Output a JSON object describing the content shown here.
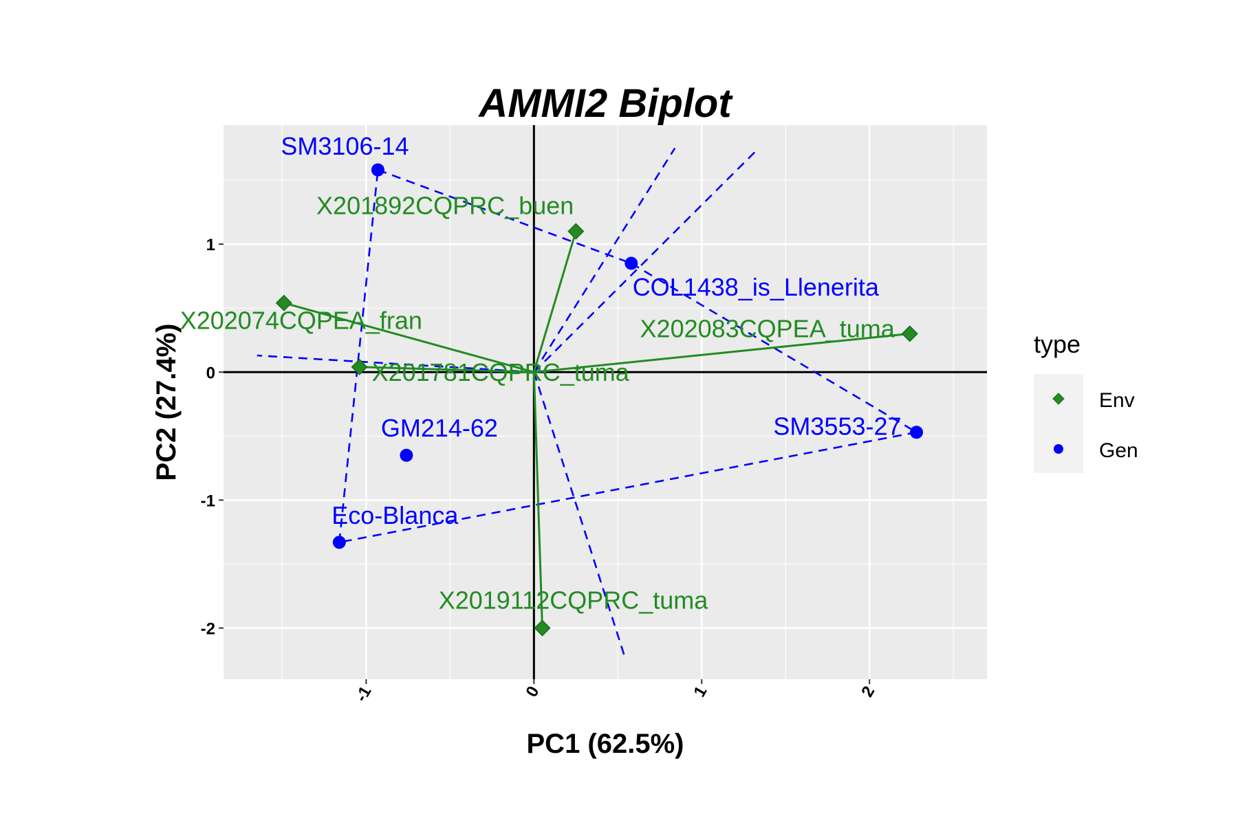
{
  "chart_data": {
    "type": "scatter",
    "title": "AMMI2 Biplot",
    "xlabel": "PC1 (62.5%)",
    "ylabel": "PC2 (27.4%)",
    "xlim": [
      -1.85,
      2.7
    ],
    "ylim": [
      -2.4,
      1.93
    ],
    "x_ticks": [
      -1,
      0,
      1,
      2
    ],
    "x_tick_labels": [
      "-1",
      "0",
      "1",
      "2"
    ],
    "y_ticks": [
      -2,
      -1,
      0,
      1
    ],
    "y_tick_labels": [
      "-2",
      "-1",
      "0",
      "1"
    ],
    "grid": true,
    "legend": {
      "title": "type",
      "position": "right",
      "entries": [
        {
          "label": "Env",
          "shape": "diamond",
          "color": "#228B22"
        },
        {
          "label": "Gen",
          "shape": "circle",
          "color": "#0000FF"
        }
      ]
    },
    "env_color": "#228B22",
    "gen_color": "#0000FF",
    "environments": [
      {
        "name": "X201892CQPRC_buen",
        "x": 0.25,
        "y": 1.1
      },
      {
        "name": "X202074CQPEA_fran",
        "x": -1.49,
        "y": 0.54
      },
      {
        "name": "X202083CQPEA_tuma",
        "x": 2.24,
        "y": 0.3
      },
      {
        "name": "X201781CQPRC_tuma",
        "x": -1.04,
        "y": 0.04
      },
      {
        "name": "X2019112CQPRC_tuma",
        "x": 0.05,
        "y": -2.0
      }
    ],
    "genotypes": [
      {
        "name": "SM3106-14",
        "x": -0.93,
        "y": 1.58
      },
      {
        "name": "COL1438_is_Llenerita",
        "x": 0.58,
        "y": 0.85
      },
      {
        "name": "SM3553-27",
        "x": 2.28,
        "y": -0.47
      },
      {
        "name": "GM214-62",
        "x": -0.76,
        "y": -0.65
      },
      {
        "name": "Eco-Blanca",
        "x": -1.16,
        "y": -1.33
      }
    ],
    "hull_order": [
      "SM3106-14",
      "COL1438_is_Llenerita",
      "SM3553-27",
      "Eco-Blanca",
      "SM3106-14"
    ],
    "perpendicular_lines": [
      {
        "from": [
          0,
          0
        ],
        "to": [
          0.84,
          1.75
        ]
      },
      {
        "from": [
          0,
          0
        ],
        "to": [
          1.34,
          1.75
        ]
      },
      {
        "from": [
          0,
          0
        ],
        "to": [
          -1.65,
          0.13
        ]
      },
      {
        "from": [
          0,
          0
        ],
        "to": [
          0.54,
          -2.22
        ]
      }
    ]
  }
}
